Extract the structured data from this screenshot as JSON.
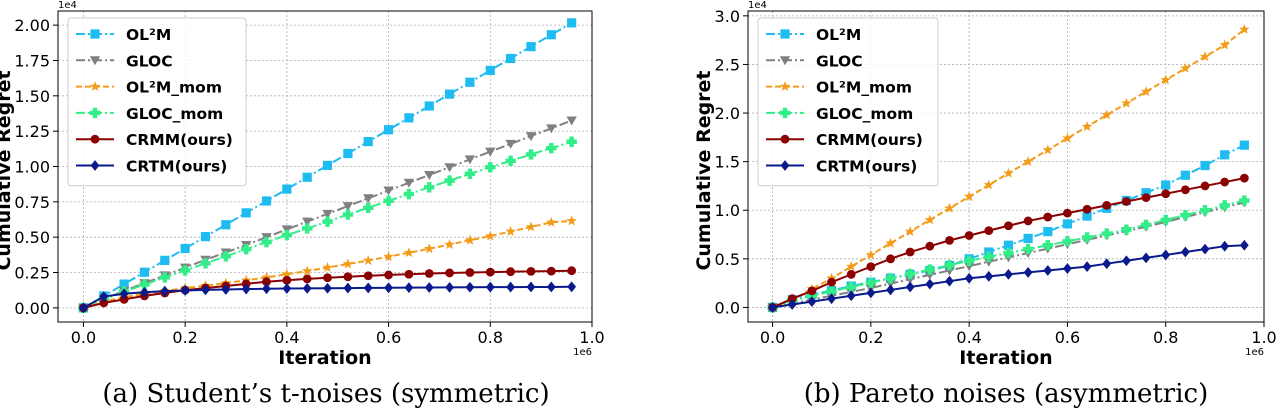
{
  "chart_data": [
    {
      "type": "line",
      "caption": "(a)  Student’s t-noises (symmetric)",
      "xlabel": "Iteration",
      "ylabel": "Cumulative Regret",
      "x_exponent": "1e6",
      "y_exponent": "1e4",
      "xlim": [
        -0.05,
        1.0
      ],
      "ylim": [
        -0.1,
        2.1
      ],
      "xticks": [
        0.0,
        0.2,
        0.4,
        0.6,
        0.8,
        1.0
      ],
      "xtick_labels": [
        "0.0",
        "0.2",
        "0.4",
        "0.6",
        "0.8",
        "1.0"
      ],
      "yticks": [
        0.0,
        0.25,
        0.5,
        0.75,
        1.0,
        1.25,
        1.5,
        1.75,
        2.0
      ],
      "ytick_labels": [
        "0.00",
        "0.25",
        "0.50",
        "0.75",
        "1.00",
        "1.25",
        "1.50",
        "1.75",
        "2.00"
      ],
      "grid": true,
      "legend_position": "top-left",
      "x": [
        0.0,
        0.04,
        0.08,
        0.12,
        0.16,
        0.2,
        0.24,
        0.28,
        0.32,
        0.36,
        0.4,
        0.44,
        0.48,
        0.52,
        0.56,
        0.6,
        0.64,
        0.68,
        0.72,
        0.76,
        0.8,
        0.84,
        0.88,
        0.92,
        0.96
      ],
      "series": [
        {
          "name": "OL²M",
          "color": "#1ebcf0",
          "marker": "square",
          "line": "dashdot",
          "values": [
            0.0,
            0.084,
            0.168,
            0.252,
            0.336,
            0.42,
            0.504,
            0.588,
            0.672,
            0.756,
            0.84,
            0.924,
            1.008,
            1.092,
            1.176,
            1.26,
            1.344,
            1.428,
            1.512,
            1.596,
            1.68,
            1.764,
            1.848,
            1.932,
            2.016
          ]
        },
        {
          "name": "GLOC",
          "color": "#808080",
          "marker": "triangle-down",
          "line": "dashdot",
          "values": [
            0.0,
            0.065,
            0.12,
            0.175,
            0.23,
            0.285,
            0.34,
            0.392,
            0.445,
            0.5,
            0.555,
            0.61,
            0.665,
            0.72,
            0.775,
            0.83,
            0.885,
            0.94,
            0.995,
            1.05,
            1.105,
            1.16,
            1.215,
            1.27,
            1.325
          ]
        },
        {
          "name": "OL²M_mom",
          "color": "#f39c1a",
          "marker": "star",
          "line": "dashed",
          "values": [
            0.0,
            0.045,
            0.075,
            0.1,
            0.12,
            0.14,
            0.157,
            0.175,
            0.195,
            0.215,
            0.238,
            0.26,
            0.285,
            0.31,
            0.335,
            0.362,
            0.39,
            0.418,
            0.448,
            0.478,
            0.508,
            0.54,
            0.572,
            0.605,
            0.615
          ]
        },
        {
          "name": "GLOC_mom",
          "color": "#33ee88",
          "marker": "plus",
          "line": "dashdot",
          "values": [
            0.0,
            0.06,
            0.115,
            0.165,
            0.215,
            0.265,
            0.315,
            0.365,
            0.415,
            0.465,
            0.515,
            0.562,
            0.61,
            0.66,
            0.708,
            0.757,
            0.805,
            0.853,
            0.9,
            0.948,
            0.995,
            1.04,
            1.085,
            1.13,
            1.175
          ]
        },
        {
          "name": "CRMM(ours)",
          "color": "#8b0000",
          "marker": "circle",
          "line": "solid",
          "values": [
            0.0,
            0.035,
            0.06,
            0.085,
            0.105,
            0.125,
            0.14,
            0.155,
            0.17,
            0.185,
            0.195,
            0.205,
            0.213,
            0.22,
            0.227,
            0.233,
            0.238,
            0.243,
            0.247,
            0.25,
            0.253,
            0.256,
            0.258,
            0.26,
            0.263
          ]
        },
        {
          "name": "CRTM(ours)",
          "color": "#0a1a8c",
          "marker": "diamond",
          "line": "solid",
          "values": [
            0.0,
            0.08,
            0.1,
            0.11,
            0.118,
            0.123,
            0.127,
            0.13,
            0.133,
            0.135,
            0.137,
            0.138,
            0.139,
            0.14,
            0.141,
            0.142,
            0.143,
            0.144,
            0.145,
            0.146,
            0.147,
            0.147,
            0.148,
            0.148,
            0.149
          ]
        }
      ]
    },
    {
      "type": "line",
      "caption": "(b)  Pareto noises (asymmetric)",
      "xlabel": "Iteration",
      "ylabel": "Cumulative Regret",
      "x_exponent": "1e6",
      "y_exponent": "1e4",
      "xlim": [
        -0.05,
        1.0
      ],
      "ylim": [
        -0.15,
        3.05
      ],
      "xticks": [
        0.0,
        0.2,
        0.4,
        0.6,
        0.8,
        1.0
      ],
      "xtick_labels": [
        "0.0",
        "0.2",
        "0.4",
        "0.6",
        "0.8",
        "1.0"
      ],
      "yticks": [
        0.0,
        0.5,
        1.0,
        1.5,
        2.0,
        2.5,
        3.0
      ],
      "ytick_labels": [
        "0.0",
        "0.5",
        "1.0",
        "1.5",
        "2.0",
        "2.5",
        "3.0"
      ],
      "grid": true,
      "legend_position": "top-left",
      "x": [
        0.0,
        0.04,
        0.08,
        0.12,
        0.16,
        0.2,
        0.24,
        0.28,
        0.32,
        0.36,
        0.4,
        0.44,
        0.48,
        0.52,
        0.56,
        0.6,
        0.64,
        0.68,
        0.72,
        0.76,
        0.8,
        0.84,
        0.88,
        0.92,
        0.96
      ],
      "series": [
        {
          "name": "OL²M",
          "color": "#1ebcf0",
          "marker": "square",
          "line": "dashdot",
          "values": [
            0.0,
            0.08,
            0.13,
            0.175,
            0.22,
            0.26,
            0.3,
            0.34,
            0.38,
            0.43,
            0.5,
            0.57,
            0.64,
            0.71,
            0.78,
            0.86,
            0.94,
            1.02,
            1.1,
            1.18,
            1.26,
            1.36,
            1.46,
            1.57,
            1.67
          ]
        },
        {
          "name": "GLOC",
          "color": "#808080",
          "marker": "triangle-down",
          "line": "dashdot",
          "values": [
            0.0,
            0.04,
            0.08,
            0.12,
            0.16,
            0.2,
            0.245,
            0.29,
            0.335,
            0.38,
            0.425,
            0.47,
            0.515,
            0.56,
            0.605,
            0.65,
            0.695,
            0.74,
            0.785,
            0.83,
            0.88,
            0.93,
            0.98,
            1.03,
            1.08
          ]
        },
        {
          "name": "OL²M_mom",
          "color": "#f39c1a",
          "marker": "star",
          "line": "dashed",
          "values": [
            0.0,
            0.08,
            0.19,
            0.3,
            0.42,
            0.54,
            0.66,
            0.78,
            0.9,
            1.02,
            1.14,
            1.26,
            1.38,
            1.5,
            1.62,
            1.74,
            1.86,
            1.98,
            2.1,
            2.22,
            2.34,
            2.46,
            2.58,
            2.7,
            2.86
          ]
        },
        {
          "name": "GLOC_mom",
          "color": "#33ee88",
          "marker": "plus",
          "line": "dashdot",
          "values": [
            0.0,
            0.07,
            0.12,
            0.165,
            0.21,
            0.255,
            0.3,
            0.345,
            0.39,
            0.435,
            0.48,
            0.52,
            0.56,
            0.6,
            0.64,
            0.68,
            0.72,
            0.76,
            0.8,
            0.85,
            0.9,
            0.95,
            1.0,
            1.05,
            1.1
          ]
        },
        {
          "name": "CRMM(ours)",
          "color": "#8b0000",
          "marker": "circle",
          "line": "solid",
          "values": [
            0.0,
            0.09,
            0.17,
            0.26,
            0.34,
            0.42,
            0.5,
            0.57,
            0.63,
            0.69,
            0.74,
            0.79,
            0.84,
            0.89,
            0.93,
            0.97,
            1.01,
            1.05,
            1.09,
            1.13,
            1.17,
            1.21,
            1.25,
            1.29,
            1.33
          ]
        },
        {
          "name": "CRTM(ours)",
          "color": "#0a1a8c",
          "marker": "diamond",
          "line": "solid",
          "values": [
            0.0,
            0.03,
            0.06,
            0.09,
            0.12,
            0.15,
            0.18,
            0.21,
            0.24,
            0.27,
            0.3,
            0.32,
            0.34,
            0.36,
            0.38,
            0.4,
            0.42,
            0.45,
            0.48,
            0.51,
            0.54,
            0.57,
            0.6,
            0.63,
            0.64
          ]
        }
      ]
    }
  ]
}
